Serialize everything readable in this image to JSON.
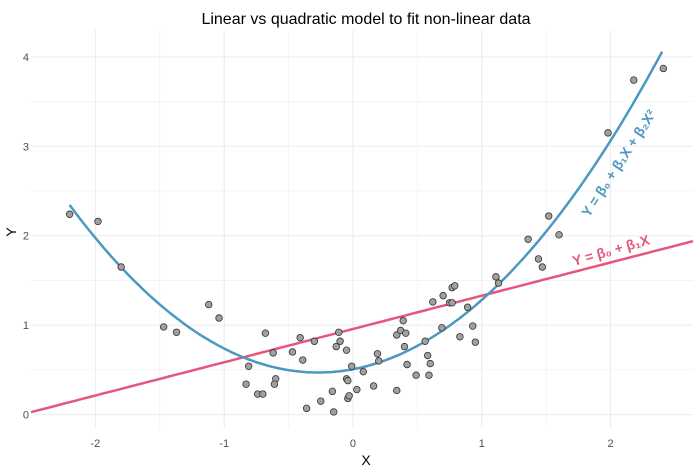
{
  "chart_data": {
    "type": "scatter",
    "title": "Linear vs quadratic model to fit non-linear data",
    "xlabel": "X",
    "ylabel": "Y",
    "xlim": [
      -2.5,
      2.64
    ],
    "ylim": [
      -0.15,
      4.3
    ],
    "grid": true,
    "xticks": [
      -2,
      -1,
      0,
      1,
      2
    ],
    "xtick_labels": [
      "-2",
      "-1",
      "0",
      "1",
      "2"
    ],
    "yticks": [
      0,
      1,
      2,
      3,
      4
    ],
    "ytick_labels": [
      "0",
      "1",
      "2",
      "3",
      "4"
    ],
    "points": {
      "x": [
        -2.2,
        -1.98,
        -1.8,
        -1.47,
        -1.37,
        -1.12,
        -1.04,
        -0.81,
        -0.83,
        -0.74,
        -0.7,
        -0.68,
        -0.62,
        -0.6,
        -0.61,
        -0.47,
        -0.41,
        -0.39,
        -0.36,
        -0.3,
        -0.25,
        -0.16,
        -0.15,
        -0.13,
        -0.11,
        -0.1,
        -0.05,
        -0.05,
        -0.04,
        -0.04,
        -0.03,
        -0.01,
        0.03,
        0.08,
        0.16,
        0.19,
        0.2,
        0.34,
        0.37,
        0.41,
        0.39,
        0.4,
        0.34,
        0.42,
        0.49,
        0.56,
        0.58,
        0.6,
        0.59,
        0.62,
        0.69,
        0.7,
        0.75,
        0.77,
        0.77,
        0.79,
        0.83,
        0.89,
        0.93,
        0.95,
        1.11,
        1.13,
        1.36,
        1.44,
        1.47,
        1.52,
        1.6,
        1.98,
        2.18,
        2.41
      ],
      "y": [
        2.24,
        2.16,
        1.65,
        0.98,
        0.92,
        1.23,
        1.08,
        0.54,
        0.34,
        0.23,
        0.23,
        0.91,
        0.69,
        0.4,
        0.34,
        0.7,
        0.86,
        0.61,
        0.07,
        0.82,
        0.15,
        0.26,
        0.03,
        0.76,
        0.92,
        0.82,
        0.72,
        0.4,
        0.38,
        0.18,
        0.21,
        0.54,
        0.28,
        0.48,
        0.32,
        0.68,
        0.6,
        0.89,
        0.94,
        0.91,
        1.05,
        0.76,
        0.27,
        0.56,
        0.44,
        0.82,
        0.66,
        0.57,
        0.44,
        1.26,
        0.97,
        1.33,
        1.25,
        1.25,
        1.42,
        1.44,
        0.87,
        1.2,
        0.99,
        0.81,
        1.54,
        1.47,
        1.96,
        1.74,
        1.65,
        2.22,
        2.01,
        3.15,
        3.74,
        3.87
      ]
    },
    "series": [
      {
        "name": "linear",
        "type": "line",
        "intercept": 0.957,
        "coef": [
          0.372
        ],
        "x_range": [
          -2.5,
          2.64
        ],
        "color": "#e6567b",
        "label": "Y = β₀ + β₁X"
      },
      {
        "name": "quadratic",
        "type": "line",
        "intercept": 0.507,
        "coef": [
          0.272,
          0.503
        ],
        "x_range": [
          -2.2,
          2.4
        ],
        "color": "#4b98c0",
        "label": "Y = β₀ + β₁X + β₂X²"
      }
    ],
    "point_color": "#a0a0a0"
  }
}
